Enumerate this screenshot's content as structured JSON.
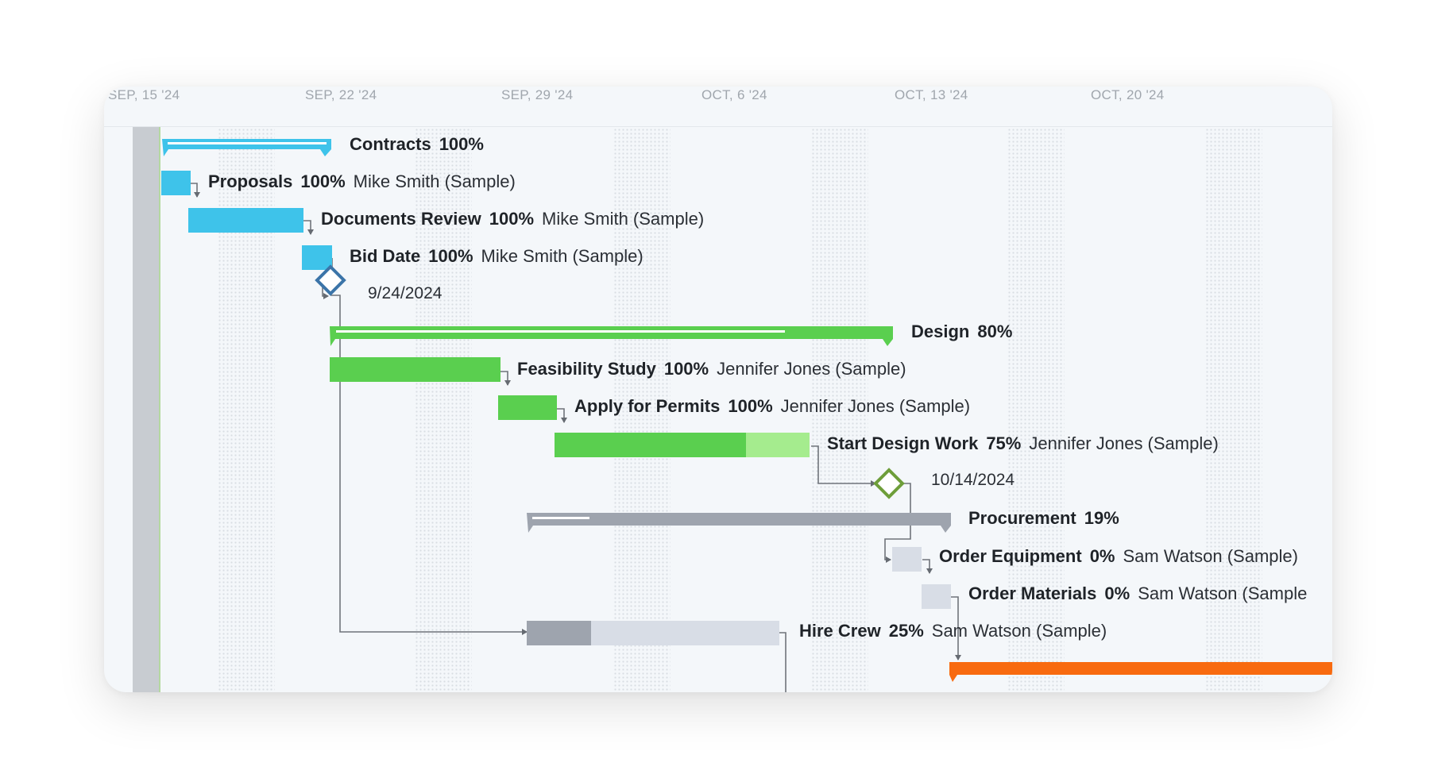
{
  "timeline": {
    "dates": [
      "SEP, 15 '24",
      "SEP, 22 '24",
      "SEP, 29 '24",
      "OCT, 6 '24",
      "OCT, 13 '24",
      "OCT, 20 '24"
    ]
  },
  "tasks": [
    {
      "name": "Contracts",
      "percent": "100%",
      "assignee": "",
      "type": "summary",
      "color": "#3ec3ea"
    },
    {
      "name": "Proposals",
      "percent": "100%",
      "assignee": "Mike Smith (Sample)",
      "type": "task",
      "color": "#3ec3ea"
    },
    {
      "name": "Documents Review",
      "percent": "100%",
      "assignee": "Mike Smith (Sample)",
      "type": "task",
      "color": "#3ec3ea"
    },
    {
      "name": "Bid Date",
      "percent": "100%",
      "assignee": "Mike Smith (Sample)",
      "type": "task",
      "color": "#3ec3ea"
    },
    {
      "name": "",
      "percent": "",
      "assignee": "",
      "type": "milestone",
      "date": "9/24/2024",
      "color": "#3b74a8"
    },
    {
      "name": "Design",
      "percent": "80%",
      "assignee": "",
      "type": "summary",
      "color": "#5acf4f"
    },
    {
      "name": "Feasibility Study",
      "percent": "100%",
      "assignee": "Jennifer Jones (Sample)",
      "type": "task",
      "color": "#5acf4f"
    },
    {
      "name": "Apply for Permits",
      "percent": "100%",
      "assignee": "Jennifer Jones (Sample)",
      "type": "task",
      "color": "#5acf4f"
    },
    {
      "name": "Start Design Work",
      "percent": "75%",
      "assignee": "Jennifer Jones (Sample)",
      "type": "task",
      "color": "#5acf4f"
    },
    {
      "name": "",
      "percent": "",
      "assignee": "",
      "type": "milestone",
      "date": "10/14/2024",
      "color": "#6e9e3a"
    },
    {
      "name": "Procurement",
      "percent": "19%",
      "assignee": "",
      "type": "summary",
      "color": "#9ea4ae"
    },
    {
      "name": "Order Equipment",
      "percent": "0%",
      "assignee": "Sam Watson (Sample)",
      "type": "task",
      "color": "#9ea4ae"
    },
    {
      "name": "Order Materials",
      "percent": "0%",
      "assignee": "Sam Watson (Sample",
      "type": "task",
      "color": "#9ea4ae"
    },
    {
      "name": "Hire Crew",
      "percent": "25%",
      "assignee": "Sam Watson (Sample)",
      "type": "task",
      "color": "#9ea4ae"
    },
    {
      "name": "",
      "percent": "",
      "assignee": "",
      "type": "summary-partial",
      "color": "#f86a0f"
    }
  ],
  "colors": {
    "blue": "#3ec3ea",
    "green": "#5acf4f",
    "green_light": "#a5ec8e",
    "gray": "#9ea4ae",
    "gray_light": "#d8dde6",
    "orange": "#f86a0f",
    "today": "#c8ccd1"
  }
}
